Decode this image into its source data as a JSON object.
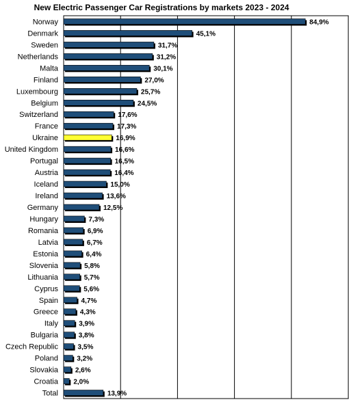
{
  "chart_data": {
    "type": "bar",
    "orientation": "horizontal",
    "title": "New Electric Passenger Car Registrations by markets 2023 - 2024",
    "xlabel": "",
    "ylabel": "",
    "xlim": [
      0,
      100
    ],
    "grid": true,
    "legend": "none",
    "colors": {
      "bar": "#1f4e79",
      "highlight": "#ffff33",
      "shadow": "#000000",
      "grid": "#000000"
    },
    "highlight_category": "Ukraine",
    "categories": [
      "Norway",
      "Denmark",
      "Sweden",
      "Netherlands",
      "Malta",
      "Finland",
      "Luxembourg",
      "Belgium",
      "Switzerland",
      "France",
      "Ukraine",
      "United Kingdom",
      "Portugal",
      "Austria",
      "Iceland",
      "Ireland",
      "Germany",
      "Hungary",
      "Romania",
      "Latvia",
      "Estonia",
      "Slovenia",
      "Lithuania",
      "Cyprus",
      "Spain",
      "Greece",
      "Italy",
      "Bulgaria",
      "Czech Republic",
      "Poland",
      "Slovakia",
      "Croatia",
      "Total"
    ],
    "values": [
      84.9,
      45.1,
      31.7,
      31.2,
      30.1,
      27.0,
      25.7,
      24.5,
      17.6,
      17.3,
      16.9,
      16.6,
      16.5,
      16.4,
      15.0,
      13.6,
      12.5,
      7.3,
      6.9,
      6.7,
      6.4,
      5.8,
      5.7,
      5.6,
      4.7,
      4.3,
      3.9,
      3.8,
      3.5,
      3.2,
      2.6,
      2.0,
      13.9
    ],
    "value_labels": [
      "84,9%",
      "45,1%",
      "31,7%",
      "31,2%",
      "30,1%",
      "27,0%",
      "25,7%",
      "24,5%",
      "17,6%",
      "17,3%",
      "16,9%",
      "16,6%",
      "16,5%",
      "16,4%",
      "15,0%",
      "13,6%",
      "12,5%",
      "7,3%",
      "6,9%",
      "6,7%",
      "6,4%",
      "5,8%",
      "5,7%",
      "5,6%",
      "4,7%",
      "4,3%",
      "3,9%",
      "3,8%",
      "3,5%",
      "3,2%",
      "2,6%",
      "2,0%",
      "13,9%"
    ]
  }
}
